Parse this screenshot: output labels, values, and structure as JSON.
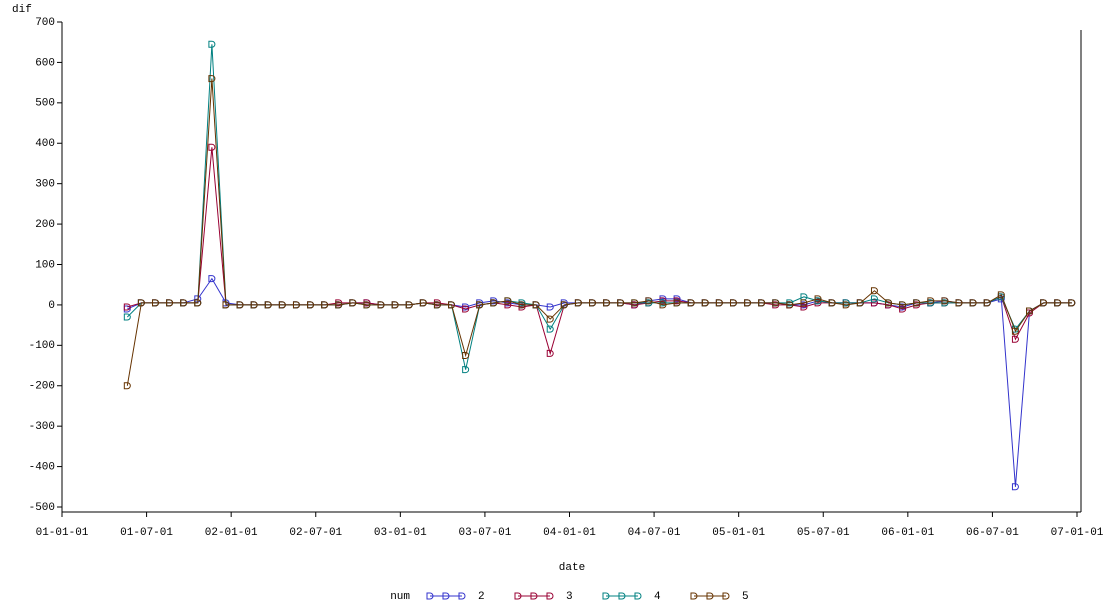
{
  "chart_data": {
    "type": "line",
    "ylabel": "dif",
    "xlabel": "date",
    "legend_title": "num",
    "x": [
      "01-05-20",
      "01-06-20",
      "01-07-20",
      "01-08-20",
      "01-09-20",
      "01-10-20",
      "01-11-20",
      "01-12-20",
      "02-01-20",
      "02-02-20",
      "02-03-20",
      "02-04-20",
      "02-05-20",
      "02-06-20",
      "02-07-20",
      "02-08-20",
      "02-09-20",
      "02-10-20",
      "02-11-20",
      "02-12-20",
      "03-01-20",
      "03-02-20",
      "03-03-20",
      "03-04-20",
      "03-05-20",
      "03-06-20",
      "03-07-20",
      "03-08-20",
      "03-09-20",
      "03-10-20",
      "03-11-20",
      "03-12-20",
      "04-01-20",
      "04-02-20",
      "04-03-20",
      "04-04-20",
      "04-05-20",
      "04-06-20",
      "04-07-20",
      "04-08-20",
      "04-09-20",
      "04-10-20",
      "04-11-20",
      "04-12-20",
      "05-01-20",
      "05-02-20",
      "05-03-20",
      "05-04-20",
      "05-05-20",
      "05-06-20",
      "05-07-20",
      "05-08-20",
      "05-09-20",
      "05-10-20",
      "05-11-20",
      "05-12-20",
      "06-01-20",
      "06-02-20",
      "06-03-20",
      "06-04-20",
      "06-05-20",
      "06-06-20",
      "06-07-20",
      "06-08-20",
      "06-09-20",
      "06-10-20",
      "06-11-20",
      "06-12-20"
    ],
    "series": [
      {
        "name": "2",
        "color": "#3333cc",
        "values": [
          -10,
          5,
          5,
          5,
          5,
          15,
          65,
          5,
          0,
          0,
          0,
          0,
          0,
          0,
          0,
          0,
          5,
          5,
          0,
          0,
          0,
          5,
          0,
          0,
          -5,
          5,
          10,
          5,
          0,
          0,
          -5,
          5,
          5,
          5,
          5,
          5,
          0,
          10,
          15,
          15,
          5,
          5,
          5,
          5,
          5,
          5,
          5,
          0,
          0,
          10,
          5,
          5,
          5,
          5,
          0,
          -5,
          5,
          5,
          10,
          5,
          5,
          5,
          15,
          -450,
          -15,
          5,
          5,
          5
        ]
      },
      {
        "name": "3",
        "color": "#990033",
        "values": [
          -5,
          5,
          5,
          5,
          5,
          5,
          390,
          0,
          0,
          0,
          0,
          0,
          0,
          0,
          0,
          5,
          5,
          5,
          0,
          0,
          0,
          5,
          5,
          0,
          -10,
          0,
          5,
          0,
          -5,
          0,
          -120,
          0,
          5,
          5,
          5,
          5,
          0,
          5,
          10,
          10,
          5,
          5,
          5,
          5,
          5,
          5,
          0,
          0,
          -5,
          5,
          5,
          5,
          5,
          5,
          0,
          -10,
          0,
          5,
          5,
          5,
          5,
          5,
          20,
          -85,
          -20,
          5,
          5,
          5
        ]
      },
      {
        "name": "4",
        "color": "#008080",
        "values": [
          -30,
          5,
          5,
          5,
          5,
          5,
          645,
          0,
          0,
          0,
          0,
          0,
          0,
          0,
          0,
          0,
          5,
          0,
          0,
          0,
          0,
          5,
          0,
          0,
          -160,
          0,
          5,
          10,
          5,
          0,
          -60,
          0,
          5,
          5,
          5,
          5,
          5,
          5,
          5,
          5,
          5,
          5,
          5,
          5,
          5,
          5,
          5,
          5,
          20,
          10,
          5,
          5,
          5,
          15,
          5,
          0,
          5,
          5,
          5,
          5,
          5,
          5,
          20,
          -60,
          -15,
          5,
          5,
          5
        ]
      },
      {
        "name": "5",
        "color": "#663300",
        "values": [
          -200,
          5,
          5,
          5,
          5,
          5,
          560,
          0,
          0,
          0,
          0,
          0,
          0,
          0,
          0,
          0,
          5,
          0,
          0,
          0,
          0,
          5,
          0,
          0,
          -125,
          0,
          5,
          10,
          0,
          0,
          -35,
          0,
          5,
          5,
          5,
          5,
          5,
          10,
          0,
          5,
          5,
          5,
          5,
          5,
          5,
          5,
          5,
          0,
          5,
          15,
          5,
          0,
          5,
          35,
          5,
          0,
          5,
          10,
          10,
          5,
          5,
          5,
          25,
          -65,
          -15,
          5,
          5,
          5
        ]
      }
    ],
    "xlim": [
      "01-01-01",
      "07-01-01"
    ],
    "xticks": [
      "01-01-01",
      "01-07-01",
      "02-01-01",
      "02-07-01",
      "03-01-01",
      "03-07-01",
      "04-01-01",
      "04-07-01",
      "05-01-01",
      "05-07-01",
      "06-01-01",
      "06-07-01",
      "07-01-01"
    ],
    "ylim": [
      -500,
      700
    ],
    "yticks": [
      -500,
      -400,
      -300,
      -200,
      -100,
      0,
      100,
      200,
      300,
      400,
      500,
      600,
      700
    ]
  }
}
